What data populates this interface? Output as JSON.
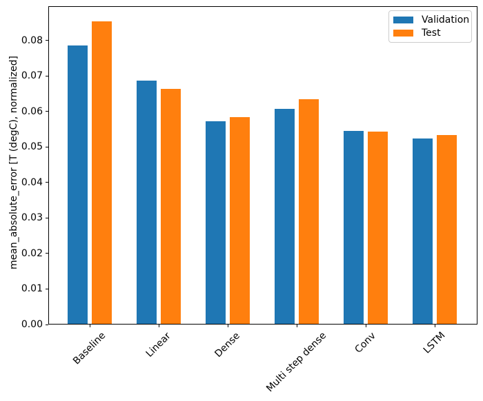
{
  "chart_data": {
    "type": "bar",
    "title": "",
    "xlabel": "",
    "ylabel": "mean_absolute_error [T (degC), normalized]",
    "categories": [
      "Baseline",
      "Linear",
      "Dense",
      "Multi step dense",
      "Conv",
      "LSTM"
    ],
    "series": [
      {
        "name": "Validation",
        "color": "#1f77b4",
        "values": [
          0.0785,
          0.0687,
          0.0572,
          0.0607,
          0.0545,
          0.0524
        ]
      },
      {
        "name": "Test",
        "color": "#ff7f0e",
        "values": [
          0.0853,
          0.0663,
          0.0584,
          0.0634,
          0.0543,
          0.0534
        ]
      }
    ],
    "ylim": [
      0,
      0.0896
    ],
    "xlim": [
      -0.6,
      5.62
    ],
    "yticks": [
      0,
      0.01,
      0.02,
      0.03,
      0.04,
      0.05,
      0.06,
      0.07,
      0.08
    ],
    "ytick_labels": [
      "0.00",
      "0.01",
      "0.02",
      "0.03",
      "0.04",
      "0.05",
      "0.06",
      "0.07",
      "0.08"
    ],
    "xtick_rotation": 45,
    "grid": false,
    "bar_width_units": 0.29,
    "bar_offset_units": 0.175,
    "legend": {
      "position": "upper-right"
    }
  },
  "colors": {
    "background": "#ffffff",
    "spine": "#000000",
    "legend_border": "#cccccc",
    "text": "#000000"
  }
}
